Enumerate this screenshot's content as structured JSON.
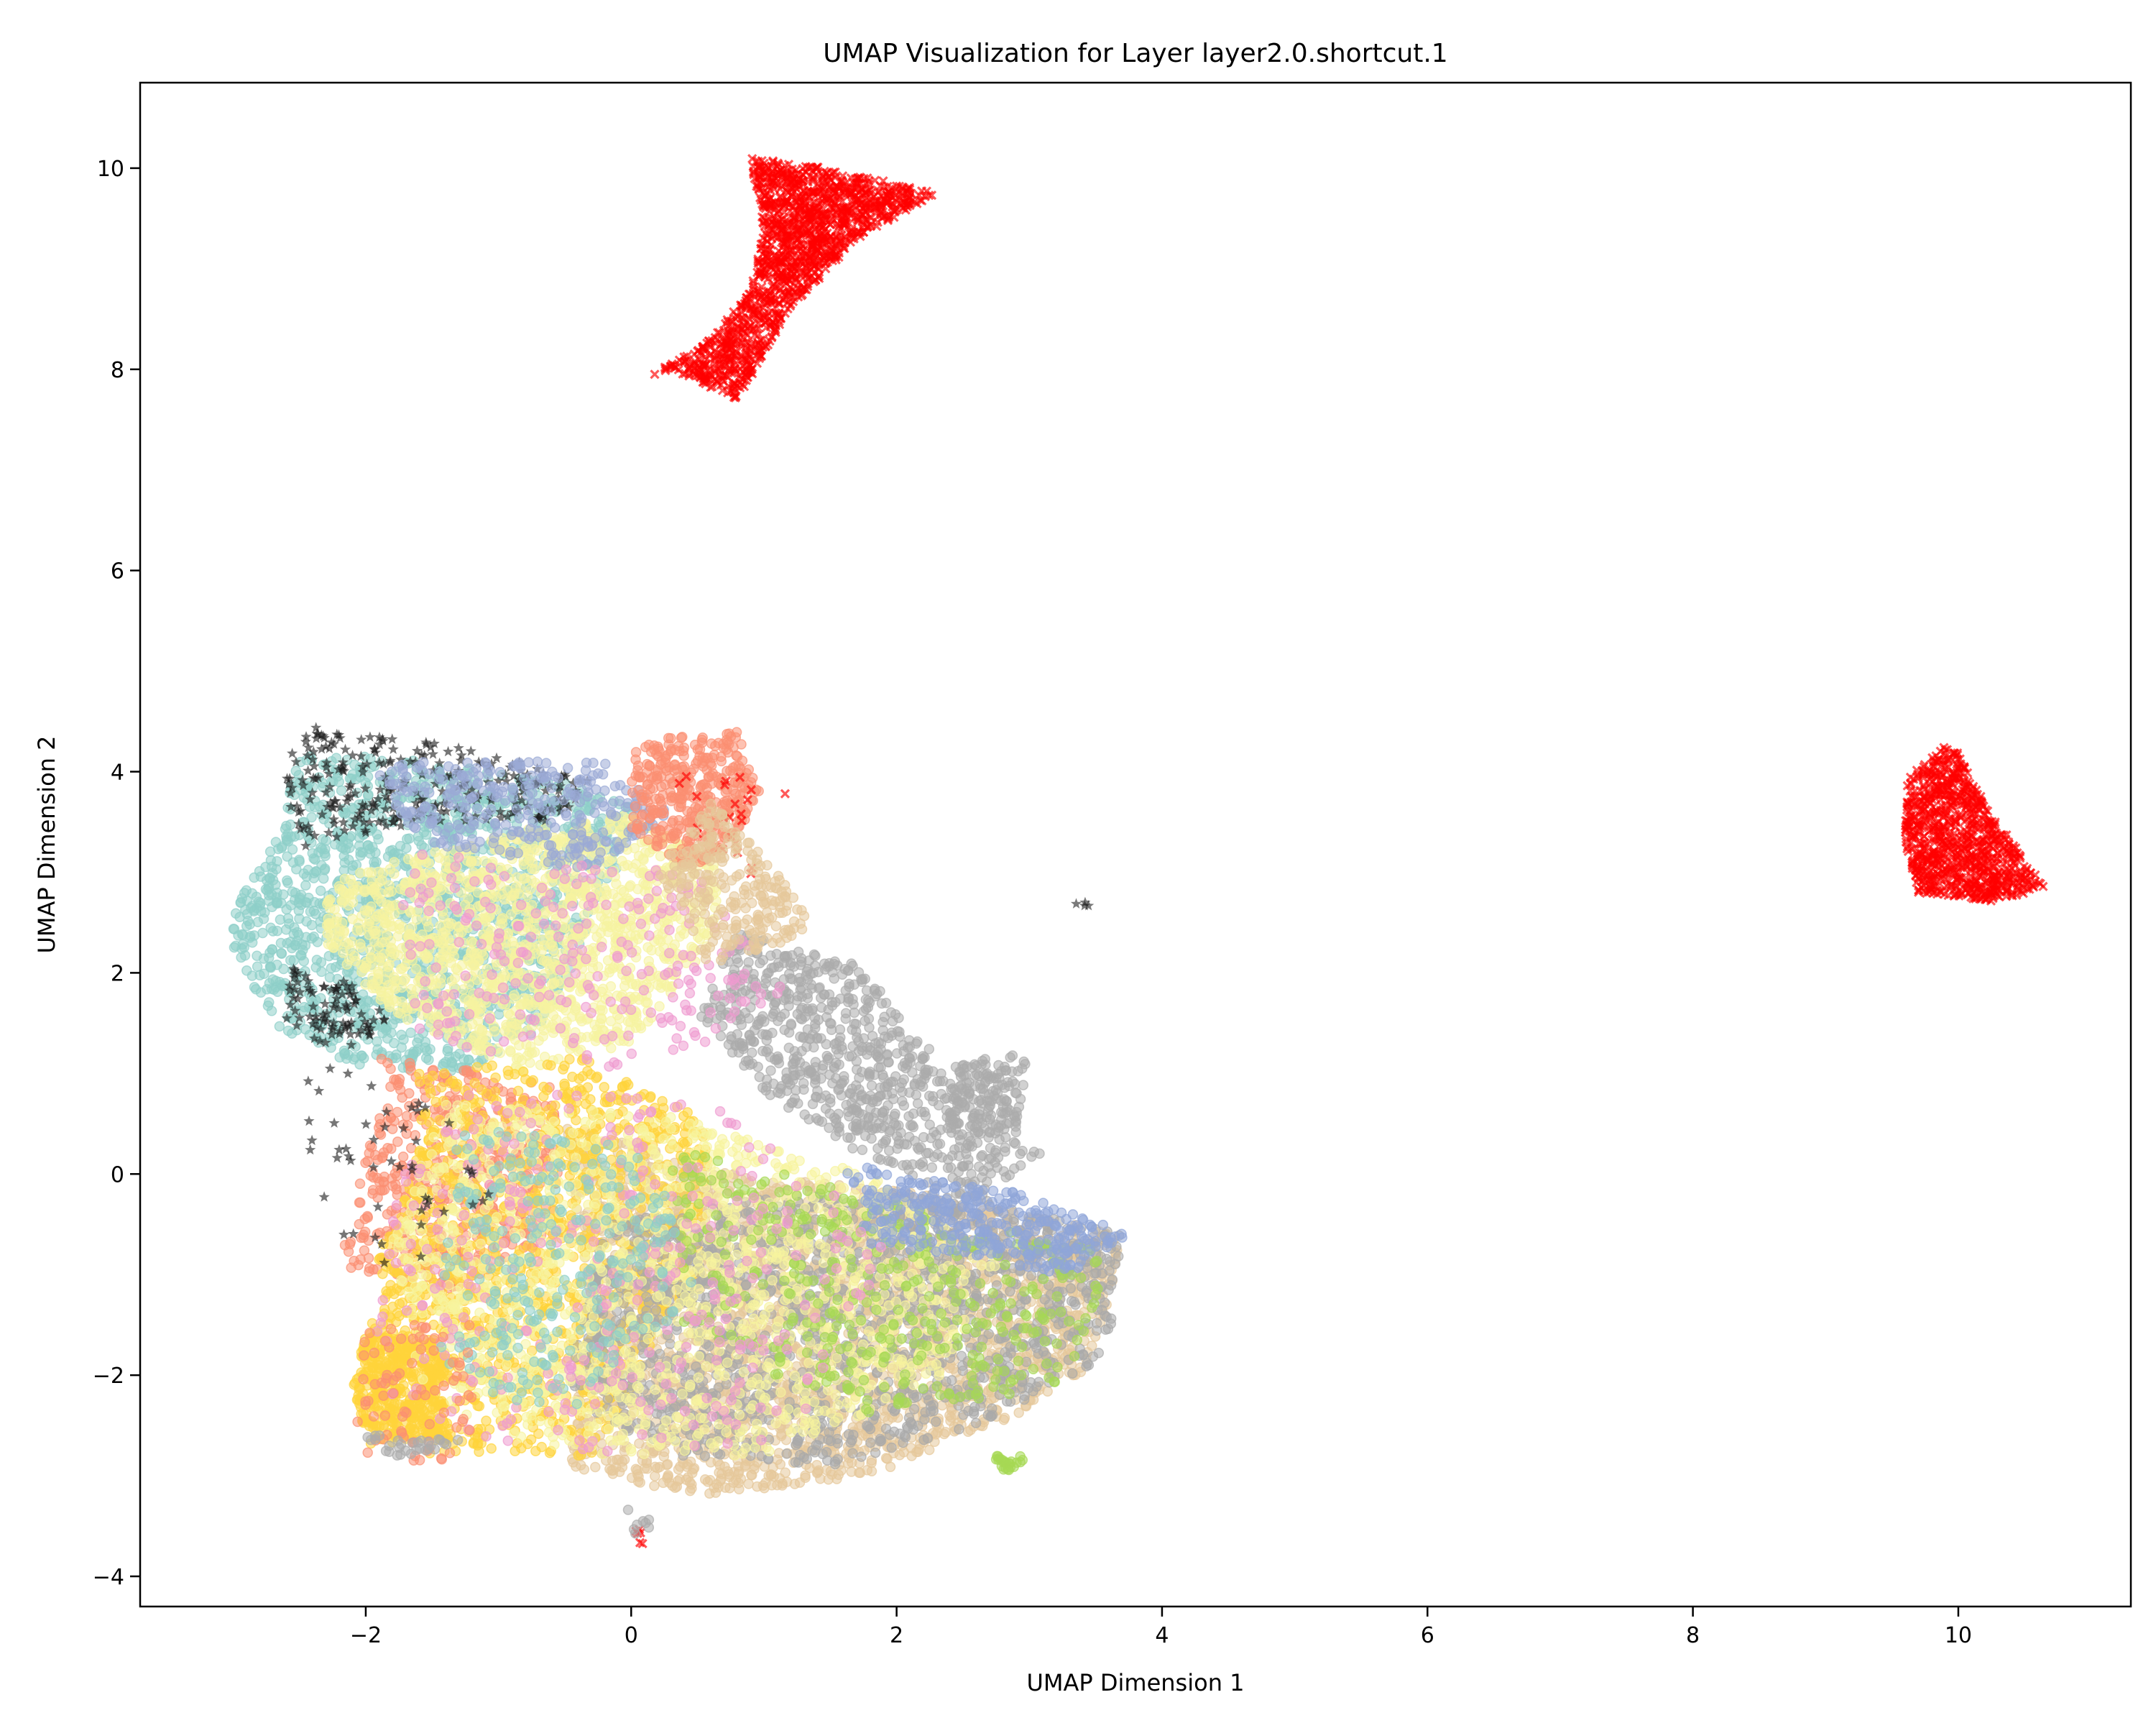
{
  "chart_data": {
    "type": "scatter",
    "title": "UMAP Visualization for Layer layer2.0.shortcut.1",
    "xlabel": "UMAP Dimension 1",
    "ylabel": "UMAP Dimension 2",
    "xlim": [
      -3.7,
      11.3
    ],
    "ylim": [
      -4.3,
      10.85
    ],
    "grid": false,
    "legend": "none",
    "x_ticks": [
      -2,
      0,
      2,
      4,
      6,
      8,
      10
    ],
    "y_ticks": [
      -4,
      -2,
      0,
      2,
      4,
      6,
      8,
      10
    ],
    "x_tick_labels": [
      "−2",
      "0",
      "2",
      "4",
      "6",
      "8",
      "10"
    ],
    "y_tick_labels": [
      "−4",
      "−2",
      "0",
      "2",
      "4",
      "6",
      "8",
      "10"
    ],
    "clusters": [
      {
        "kind": "red_x",
        "color": "#ff0000",
        "n": 1400,
        "region": [
          [
            0.1,
            7.9
          ],
          [
            0.6,
            8.3
          ],
          [
            0.9,
            8.8
          ],
          [
            1.0,
            9.4
          ],
          [
            0.9,
            10.1
          ],
          [
            1.5,
            10.0
          ],
          [
            2.3,
            9.75
          ],
          [
            1.7,
            9.3
          ],
          [
            1.2,
            8.6
          ],
          [
            0.8,
            7.7
          ],
          [
            0.3,
            8.0
          ]
        ]
      },
      {
        "kind": "red_x",
        "color": "#ff0000",
        "n": 900,
        "region": [
          [
            9.6,
            3.9
          ],
          [
            9.75,
            4.1
          ],
          [
            9.95,
            4.3
          ],
          [
            10.15,
            3.8
          ],
          [
            10.4,
            3.3
          ],
          [
            10.65,
            2.85
          ],
          [
            10.3,
            2.7
          ],
          [
            9.7,
            2.8
          ],
          [
            9.6,
            3.3
          ]
        ]
      },
      {
        "kind": "black_star",
        "color": "#222222",
        "n": 4,
        "region": [
          [
            3.35,
            2.65
          ],
          [
            3.45,
            2.65
          ],
          [
            3.45,
            2.7
          ],
          [
            3.35,
            2.7
          ]
        ]
      },
      {
        "kind": "dot",
        "color": "#8ecfc9",
        "n": 1500,
        "region": [
          [
            -3.0,
            2.6
          ],
          [
            -2.7,
            3.3
          ],
          [
            -2.5,
            4.2
          ],
          [
            -1.5,
            4.1
          ],
          [
            -0.5,
            3.9
          ],
          [
            0.1,
            3.6
          ],
          [
            -0.2,
            2.8
          ],
          [
            -0.6,
            1.5
          ],
          [
            -1.3,
            1.0
          ],
          [
            -2.2,
            1.1
          ],
          [
            -2.7,
            1.5
          ],
          [
            -3.0,
            2.2
          ]
        ]
      },
      {
        "kind": "dot",
        "color": "#f6f3a0",
        "n": 1500,
        "region": [
          [
            -2.3,
            2.9
          ],
          [
            -1.3,
            3.3
          ],
          [
            -0.1,
            3.6
          ],
          [
            0.7,
            3.1
          ],
          [
            0.6,
            2.3
          ],
          [
            0.0,
            1.3
          ],
          [
            -0.8,
            1.0
          ],
          [
            -1.8,
            1.6
          ],
          [
            -2.3,
            2.3
          ]
        ]
      },
      {
        "kind": "black_star",
        "color": "#1a1a1a",
        "n": 260,
        "region": [
          [
            -2.6,
            4.5
          ],
          [
            -1.4,
            4.3
          ],
          [
            -0.3,
            3.9
          ],
          [
            -0.5,
            3.5
          ],
          [
            -1.6,
            3.5
          ],
          [
            -2.5,
            3.2
          ],
          [
            -2.6,
            3.8
          ]
        ]
      },
      {
        "kind": "black_star",
        "color": "#1a1a1a",
        "n": 90,
        "region": [
          [
            -2.6,
            2.1
          ],
          [
            -2.1,
            1.9
          ],
          [
            -1.8,
            1.5
          ],
          [
            -2.2,
            1.2
          ],
          [
            -2.6,
            1.5
          ]
        ]
      },
      {
        "kind": "dot",
        "color": "#9aa9d6",
        "n": 300,
        "region": [
          [
            -2.0,
            4.1
          ],
          [
            -0.2,
            4.1
          ],
          [
            0.3,
            3.6
          ],
          [
            -0.3,
            3.0
          ],
          [
            -1.6,
            3.3
          ]
        ]
      },
      {
        "kind": "dot",
        "color": "#fb8f72",
        "n": 380,
        "region": [
          [
            0.0,
            4.3
          ],
          [
            0.8,
            4.4
          ],
          [
            1.0,
            3.7
          ],
          [
            0.5,
            3.0
          ],
          [
            0.0,
            3.4
          ]
        ]
      },
      {
        "kind": "dot",
        "color": "#fb8f72",
        "n": 500,
        "region": [
          [
            -1.9,
            1.2
          ],
          [
            -0.6,
            0.9
          ],
          [
            -0.5,
            -0.6
          ],
          [
            -1.4,
            -1.2
          ],
          [
            -2.2,
            -0.9
          ],
          [
            -2.0,
            0.2
          ]
        ]
      },
      {
        "kind": "dot",
        "color": "#acacac",
        "n": 750,
        "region": [
          [
            0.8,
            2.4
          ],
          [
            1.7,
            2.1
          ],
          [
            2.4,
            1.0
          ],
          [
            2.7,
            0.5
          ],
          [
            3.1,
            0.2
          ],
          [
            2.6,
            -0.3
          ],
          [
            1.7,
            0.2
          ],
          [
            1.0,
            0.8
          ],
          [
            0.5,
            1.6
          ]
        ]
      },
      {
        "kind": "dot",
        "color": "#acacac",
        "n": 160,
        "region": [
          [
            2.4,
            1.1
          ],
          [
            3.0,
            1.2
          ],
          [
            2.9,
            0.4
          ],
          [
            2.4,
            0.4
          ]
        ]
      },
      {
        "kind": "dot",
        "color": "#e6c89a",
        "n": 2600,
        "region": [
          [
            -0.5,
            0.5
          ],
          [
            0.8,
            0.0
          ],
          [
            2.2,
            -0.2
          ],
          [
            3.7,
            -0.6
          ],
          [
            3.5,
            -1.9
          ],
          [
            2.9,
            -2.4
          ],
          [
            1.8,
            -3.0
          ],
          [
            0.5,
            -3.2
          ],
          [
            -0.5,
            -2.9
          ],
          [
            -0.3,
            -1.5
          ]
        ]
      },
      {
        "kind": "dot",
        "color": "#ffd43b",
        "n": 1300,
        "region": [
          [
            -1.6,
            1.0
          ],
          [
            -0.4,
            1.2
          ],
          [
            0.6,
            0.5
          ],
          [
            0.5,
            -1.0
          ],
          [
            -0.3,
            -2.8
          ],
          [
            -1.5,
            -2.8
          ],
          [
            -2.0,
            -2.1
          ],
          [
            -1.9,
            -0.8
          ],
          [
            -1.6,
            0.2
          ]
        ]
      },
      {
        "kind": "dot",
        "color": "#ffd43b",
        "n": 360,
        "region": [
          [
            -2.0,
            -1.5
          ],
          [
            -1.4,
            -1.7
          ],
          [
            -1.4,
            -2.6
          ],
          [
            -2.0,
            -2.7
          ],
          [
            -2.1,
            -2.1
          ]
        ]
      },
      {
        "kind": "dot",
        "color": "#a9a9a9",
        "n": 1500,
        "region": [
          [
            -0.2,
            -0.5
          ],
          [
            1.2,
            -0.2
          ],
          [
            2.5,
            -0.2
          ],
          [
            3.7,
            -0.6
          ],
          [
            3.6,
            -1.8
          ],
          [
            2.6,
            -2.5
          ],
          [
            1.5,
            -2.9
          ],
          [
            0.3,
            -2.8
          ],
          [
            -0.5,
            -2.2
          ]
        ]
      },
      {
        "kind": "dot",
        "color": "#f7f49e",
        "n": 1400,
        "region": [
          [
            -1.4,
            0.7
          ],
          [
            0.3,
            0.6
          ],
          [
            1.8,
            0.0
          ],
          [
            2.8,
            -0.8
          ],
          [
            2.3,
            -2.1
          ],
          [
            1.0,
            -2.8
          ],
          [
            -0.5,
            -2.8
          ],
          [
            -1.6,
            -2.2
          ],
          [
            -1.8,
            -0.6
          ]
        ]
      },
      {
        "kind": "dot",
        "color": "#a6d854",
        "n": 420,
        "region": [
          [
            0.3,
            0.3
          ],
          [
            2.0,
            -0.3
          ],
          [
            3.6,
            -0.8
          ],
          [
            3.3,
            -2.1
          ],
          [
            1.8,
            -2.4
          ],
          [
            0.4,
            -1.6
          ]
        ]
      },
      {
        "kind": "dot",
        "color": "#8fa5d8",
        "n": 320,
        "region": [
          [
            1.6,
            0.1
          ],
          [
            3.0,
            -0.2
          ],
          [
            3.75,
            -0.6
          ],
          [
            3.3,
            -1.0
          ],
          [
            1.8,
            -0.7
          ]
        ]
      },
      {
        "kind": "dot",
        "color": "#ef9ad0",
        "n": 320,
        "region": [
          [
            -1.6,
            0.8
          ],
          [
            0.5,
            0.8
          ],
          [
            2.0,
            -0.6
          ],
          [
            1.2,
            -2.7
          ],
          [
            -0.5,
            -2.9
          ],
          [
            -2.0,
            -2.2
          ],
          [
            -1.8,
            -0.5
          ]
        ]
      },
      {
        "kind": "dot",
        "color": "#8ecfc9",
        "n": 280,
        "region": [
          [
            -1.3,
            0.5
          ],
          [
            0.2,
            0.3
          ],
          [
            0.5,
            -1.2
          ],
          [
            -0.5,
            -2.4
          ],
          [
            -1.5,
            -2.0
          ]
        ]
      },
      {
        "kind": "dot",
        "color": "#ef9ad0",
        "n": 240,
        "region": [
          [
            -1.8,
            3.2
          ],
          [
            0.5,
            3.0
          ],
          [
            1.2,
            1.8
          ],
          [
            0.2,
            1.0
          ],
          [
            -1.6,
            1.3
          ]
        ]
      },
      {
        "kind": "dot",
        "color": "#a6d854",
        "n": 24,
        "region": [
          [
            2.75,
            -2.8
          ],
          [
            2.95,
            -2.8
          ],
          [
            2.95,
            -2.95
          ],
          [
            2.75,
            -2.95
          ]
        ]
      },
      {
        "kind": "red_x",
        "color": "#ff0000",
        "n": 22,
        "region": [
          [
            0.3,
            4.2
          ],
          [
            1.2,
            3.9
          ],
          [
            1.0,
            2.9
          ],
          [
            0.4,
            3.4
          ]
        ]
      },
      {
        "kind": "black_star",
        "color": "#1a1a1a",
        "n": 50,
        "region": [
          [
            -2.5,
            1.1
          ],
          [
            -1.6,
            0.9
          ],
          [
            -0.8,
            -0.3
          ],
          [
            -1.5,
            -1.0
          ],
          [
            -2.2,
            -0.8
          ],
          [
            -2.5,
            0.2
          ]
        ]
      },
      {
        "kind": "dot",
        "color": "#fb8f72",
        "n": 80,
        "region": [
          [
            -2.1,
            -1.5
          ],
          [
            -1.2,
            -1.5
          ],
          [
            -1.2,
            -2.9
          ],
          [
            -2.1,
            -2.8
          ]
        ]
      },
      {
        "kind": "dot",
        "color": "#acacac",
        "n": 30,
        "region": [
          [
            -2.0,
            -2.6
          ],
          [
            -1.3,
            -2.6
          ],
          [
            -1.3,
            -2.8
          ],
          [
            -2.0,
            -2.8
          ]
        ]
      },
      {
        "kind": "dot",
        "color": "#e6c89a",
        "n": 250,
        "region": [
          [
            0.6,
            3.7
          ],
          [
            1.1,
            3.0
          ],
          [
            1.4,
            2.4
          ],
          [
            0.6,
            2.0
          ],
          [
            0.2,
            3.0
          ]
        ]
      },
      {
        "kind": "red_x",
        "color": "#ff0000",
        "n": 6,
        "region": [
          [
            0.0,
            -3.5
          ],
          [
            0.1,
            -3.5
          ],
          [
            0.1,
            -3.7
          ],
          [
            0.0,
            -3.7
          ]
        ]
      },
      {
        "kind": "dot",
        "color": "#acacac",
        "n": 8,
        "region": [
          [
            -0.05,
            -3.3
          ],
          [
            0.15,
            -3.3
          ],
          [
            0.15,
            -3.6
          ],
          [
            -0.05,
            -3.6
          ]
        ]
      }
    ]
  }
}
